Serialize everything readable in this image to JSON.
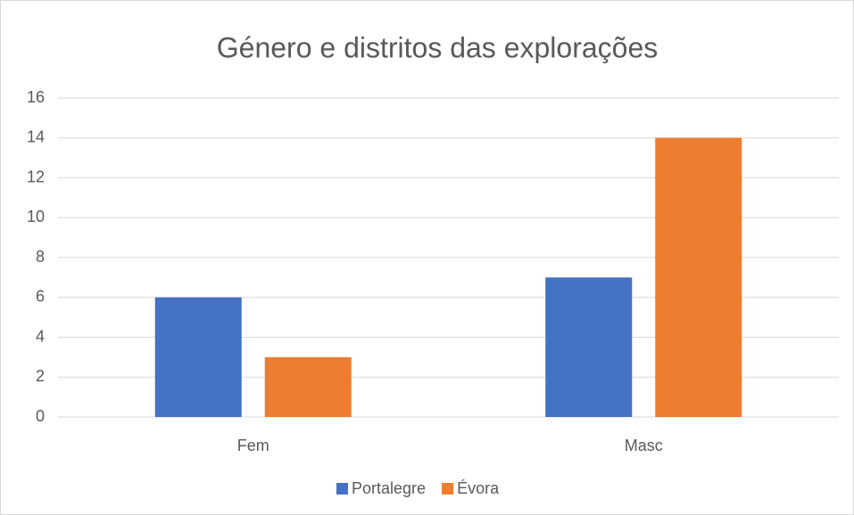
{
  "chart_data": {
    "type": "bar",
    "title": "Género e distritos das explorações",
    "categories": [
      "Fem",
      "Masc"
    ],
    "series": [
      {
        "name": "Portalegre",
        "color": "#4472c4",
        "values": [
          6,
          7
        ]
      },
      {
        "name": "Évora",
        "color": "#ed7d31",
        "values": [
          3,
          14
        ]
      }
    ],
    "ylim": [
      0,
      16
    ],
    "yticks": [
      0,
      2,
      4,
      6,
      8,
      10,
      12,
      14,
      16
    ],
    "grid": true,
    "legend": "bottom"
  }
}
